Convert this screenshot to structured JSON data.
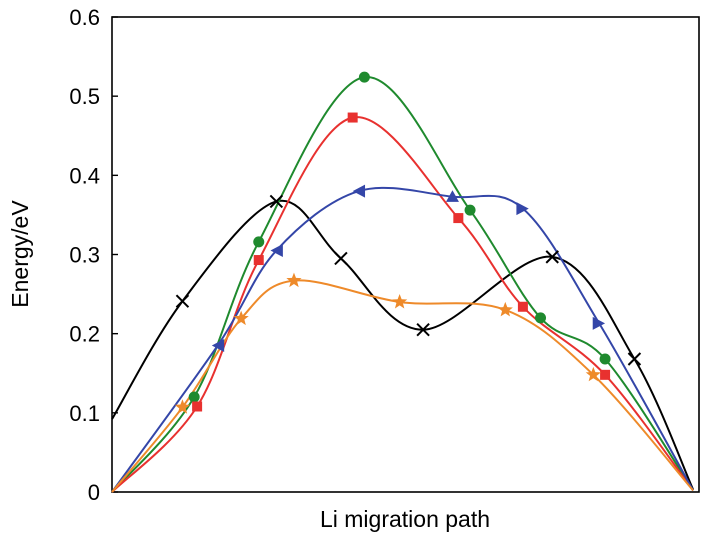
{
  "chart_data": {
    "type": "line",
    "title": "",
    "xlabel": "Li migration path",
    "ylabel": "Energy/eV",
    "xlim": [
      0,
      1
    ],
    "ylim": [
      0,
      0.6
    ],
    "y_ticks": [
      "0",
      "0.1",
      "0.2",
      "0.3",
      "0.4",
      "0.5",
      "0.6"
    ],
    "x_ticks": [],
    "grid": false,
    "legend": "none",
    "series": [
      {
        "color": "#000000",
        "marker": "x",
        "x": [
          0.0,
          0.12,
          0.28,
          0.39,
          0.53,
          0.75,
          0.89,
          0.99
        ],
        "y": [
          0.092,
          0.241,
          0.367,
          0.295,
          0.205,
          0.297,
          0.168,
          0.003
        ],
        "markers_x": [
          0.12,
          0.28,
          0.39,
          0.53,
          0.75,
          0.89
        ],
        "markers_y": [
          0.241,
          0.367,
          0.295,
          0.205,
          0.297,
          0.168
        ]
      },
      {
        "color": "#1f8a2e",
        "marker": "circle",
        "x": [
          0.0,
          0.14,
          0.25,
          0.43,
          0.61,
          0.73,
          0.84,
          0.99
        ],
        "y": [
          0.0,
          0.12,
          0.316,
          0.524,
          0.356,
          0.22,
          0.168,
          0.002
        ],
        "markers_x": [
          0.14,
          0.25,
          0.43,
          0.61,
          0.73,
          0.84
        ],
        "markers_y": [
          0.12,
          0.316,
          0.524,
          0.356,
          0.22,
          0.168
        ]
      },
      {
        "color": "#e8312f",
        "marker": "square",
        "x": [
          0.0,
          0.145,
          0.25,
          0.41,
          0.59,
          0.7,
          0.84,
          0.99
        ],
        "y": [
          0.0,
          0.108,
          0.293,
          0.473,
          0.346,
          0.234,
          0.148,
          0.002
        ],
        "markers_x": [
          0.145,
          0.25,
          0.41,
          0.59,
          0.7,
          0.84
        ],
        "markers_y": [
          0.108,
          0.293,
          0.473,
          0.346,
          0.234,
          0.148
        ]
      },
      {
        "color": "#3446a8",
        "marker": "triangle",
        "x": [
          0.0,
          0.18,
          0.28,
          0.42,
          0.58,
          0.7,
          0.83,
          0.99
        ],
        "y": [
          0.0,
          0.185,
          0.305,
          0.38,
          0.373,
          0.358,
          0.213,
          0.002
        ],
        "markers_x": [
          0.18,
          0.28,
          0.42,
          0.58,
          0.7,
          0.83
        ],
        "markers_y": [
          0.185,
          0.305,
          0.38,
          0.373,
          0.358,
          0.213
        ]
      },
      {
        "color": "#ee8a2a",
        "marker": "star",
        "x": [
          0.0,
          0.12,
          0.22,
          0.31,
          0.49,
          0.67,
          0.82,
          0.99
        ],
        "y": [
          0.0,
          0.107,
          0.219,
          0.267,
          0.24,
          0.23,
          0.148,
          0.002
        ],
        "markers_x": [
          0.12,
          0.22,
          0.31,
          0.49,
          0.67,
          0.82
        ],
        "markers_y": [
          0.107,
          0.219,
          0.267,
          0.24,
          0.23,
          0.148
        ]
      }
    ]
  }
}
